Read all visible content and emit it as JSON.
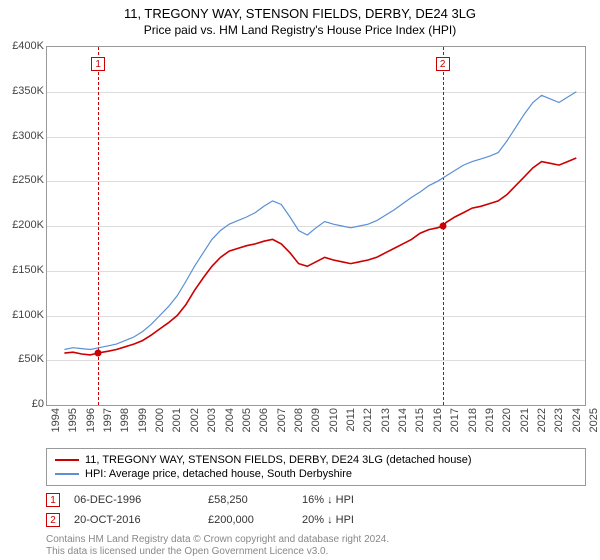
{
  "title": "11, TREGONY WAY, STENSON FIELDS, DERBY, DE24 3LG",
  "subtitle": "Price paid vs. HM Land Registry's House Price Index (HPI)",
  "chart": {
    "type": "line",
    "background_color": "#ffffff",
    "grid_color": "#dddddd",
    "border_color": "#999999",
    "xlim": [
      1994,
      2025
    ],
    "ylim": [
      0,
      400000
    ],
    "ytick_step": 50000,
    "yticks": [
      "£0",
      "£50K",
      "£100K",
      "£150K",
      "£200K",
      "£250K",
      "£300K",
      "£350K",
      "£400K"
    ],
    "xticks": [
      1994,
      1995,
      1996,
      1997,
      1998,
      1999,
      2000,
      2001,
      2002,
      2003,
      2004,
      2005,
      2006,
      2007,
      2008,
      2009,
      2010,
      2011,
      2012,
      2013,
      2014,
      2015,
      2016,
      2017,
      2018,
      2019,
      2020,
      2021,
      2022,
      2023,
      2024,
      2025
    ],
    "label_fontsize": 11,
    "series": [
      {
        "name": "price_paid",
        "color": "#cc0000",
        "width": 1.6,
        "label": "11, TREGONY WAY, STENSON FIELDS, DERBY, DE24 3LG (detached house)",
        "data": [
          [
            1995.0,
            58000
          ],
          [
            1995.5,
            59000
          ],
          [
            1996.0,
            57000
          ],
          [
            1996.5,
            56000
          ],
          [
            1996.95,
            58250
          ],
          [
            1997.5,
            60000
          ],
          [
            1998.0,
            62000
          ],
          [
            1998.5,
            65000
          ],
          [
            1999.0,
            68000
          ],
          [
            1999.5,
            72000
          ],
          [
            2000.0,
            78000
          ],
          [
            2000.5,
            85000
          ],
          [
            2001.0,
            92000
          ],
          [
            2001.5,
            100000
          ],
          [
            2002.0,
            112000
          ],
          [
            2002.5,
            128000
          ],
          [
            2003.0,
            142000
          ],
          [
            2003.5,
            155000
          ],
          [
            2004.0,
            165000
          ],
          [
            2004.5,
            172000
          ],
          [
            2005.0,
            175000
          ],
          [
            2005.5,
            178000
          ],
          [
            2006.0,
            180000
          ],
          [
            2006.5,
            183000
          ],
          [
            2007.0,
            185000
          ],
          [
            2007.5,
            180000
          ],
          [
            2008.0,
            170000
          ],
          [
            2008.5,
            158000
          ],
          [
            2009.0,
            155000
          ],
          [
            2009.5,
            160000
          ],
          [
            2010.0,
            165000
          ],
          [
            2010.5,
            162000
          ],
          [
            2011.0,
            160000
          ],
          [
            2011.5,
            158000
          ],
          [
            2012.0,
            160000
          ],
          [
            2012.5,
            162000
          ],
          [
            2013.0,
            165000
          ],
          [
            2013.5,
            170000
          ],
          [
            2014.0,
            175000
          ],
          [
            2014.5,
            180000
          ],
          [
            2015.0,
            185000
          ],
          [
            2015.5,
            192000
          ],
          [
            2016.0,
            196000
          ],
          [
            2016.5,
            198000
          ],
          [
            2016.8,
            200000
          ],
          [
            2017.0,
            204000
          ],
          [
            2017.5,
            210000
          ],
          [
            2018.0,
            215000
          ],
          [
            2018.5,
            220000
          ],
          [
            2019.0,
            222000
          ],
          [
            2019.5,
            225000
          ],
          [
            2020.0,
            228000
          ],
          [
            2020.5,
            235000
          ],
          [
            2021.0,
            245000
          ],
          [
            2021.5,
            255000
          ],
          [
            2022.0,
            265000
          ],
          [
            2022.5,
            272000
          ],
          [
            2023.0,
            270000
          ],
          [
            2023.5,
            268000
          ],
          [
            2024.0,
            272000
          ],
          [
            2024.5,
            276000
          ]
        ]
      },
      {
        "name": "hpi",
        "color": "#5b8fd6",
        "width": 1.2,
        "label": "HPI: Average price, detached house, South Derbyshire",
        "data": [
          [
            1995.0,
            62000
          ],
          [
            1995.5,
            64000
          ],
          [
            1996.0,
            63000
          ],
          [
            1996.5,
            62000
          ],
          [
            1997.0,
            64000
          ],
          [
            1997.5,
            66000
          ],
          [
            1998.0,
            68000
          ],
          [
            1998.5,
            72000
          ],
          [
            1999.0,
            76000
          ],
          [
            1999.5,
            82000
          ],
          [
            2000.0,
            90000
          ],
          [
            2000.5,
            100000
          ],
          [
            2001.0,
            110000
          ],
          [
            2001.5,
            122000
          ],
          [
            2002.0,
            138000
          ],
          [
            2002.5,
            155000
          ],
          [
            2003.0,
            170000
          ],
          [
            2003.5,
            185000
          ],
          [
            2004.0,
            195000
          ],
          [
            2004.5,
            202000
          ],
          [
            2005.0,
            206000
          ],
          [
            2005.5,
            210000
          ],
          [
            2006.0,
            215000
          ],
          [
            2006.5,
            222000
          ],
          [
            2007.0,
            228000
          ],
          [
            2007.5,
            224000
          ],
          [
            2008.0,
            210000
          ],
          [
            2008.5,
            195000
          ],
          [
            2009.0,
            190000
          ],
          [
            2009.5,
            198000
          ],
          [
            2010.0,
            205000
          ],
          [
            2010.5,
            202000
          ],
          [
            2011.0,
            200000
          ],
          [
            2011.5,
            198000
          ],
          [
            2012.0,
            200000
          ],
          [
            2012.5,
            202000
          ],
          [
            2013.0,
            206000
          ],
          [
            2013.5,
            212000
          ],
          [
            2014.0,
            218000
          ],
          [
            2014.5,
            225000
          ],
          [
            2015.0,
            232000
          ],
          [
            2015.5,
            238000
          ],
          [
            2016.0,
            245000
          ],
          [
            2016.5,
            250000
          ],
          [
            2017.0,
            256000
          ],
          [
            2017.5,
            262000
          ],
          [
            2018.0,
            268000
          ],
          [
            2018.5,
            272000
          ],
          [
            2019.0,
            275000
          ],
          [
            2019.5,
            278000
          ],
          [
            2020.0,
            282000
          ],
          [
            2020.5,
            295000
          ],
          [
            2021.0,
            310000
          ],
          [
            2021.5,
            325000
          ],
          [
            2022.0,
            338000
          ],
          [
            2022.5,
            346000
          ],
          [
            2023.0,
            342000
          ],
          [
            2023.5,
            338000
          ],
          [
            2024.0,
            344000
          ],
          [
            2024.5,
            350000
          ]
        ]
      }
    ],
    "markers": [
      {
        "id": "1",
        "year": 1996.95,
        "value": 58250,
        "box_top": 10
      },
      {
        "id": "2",
        "year": 2016.8,
        "value": 200000,
        "box_top": 10
      }
    ]
  },
  "legend": {
    "items": [
      {
        "color": "#cc0000",
        "label": "11, TREGONY WAY, STENSON FIELDS, DERBY, DE24 3LG (detached house)"
      },
      {
        "color": "#5b8fd6",
        "label": "HPI: Average price, detached house, South Derbyshire"
      }
    ]
  },
  "sales": [
    {
      "marker": "1",
      "date": "06-DEC-1996",
      "price": "£58,250",
      "pct": "16% ↓ HPI"
    },
    {
      "marker": "2",
      "date": "20-OCT-2016",
      "price": "£200,000",
      "pct": "20% ↓ HPI"
    }
  ],
  "attribution": {
    "line1": "Contains HM Land Registry data © Crown copyright and database right 2024.",
    "line2": "This data is licensed under the Open Government Licence v3.0."
  }
}
